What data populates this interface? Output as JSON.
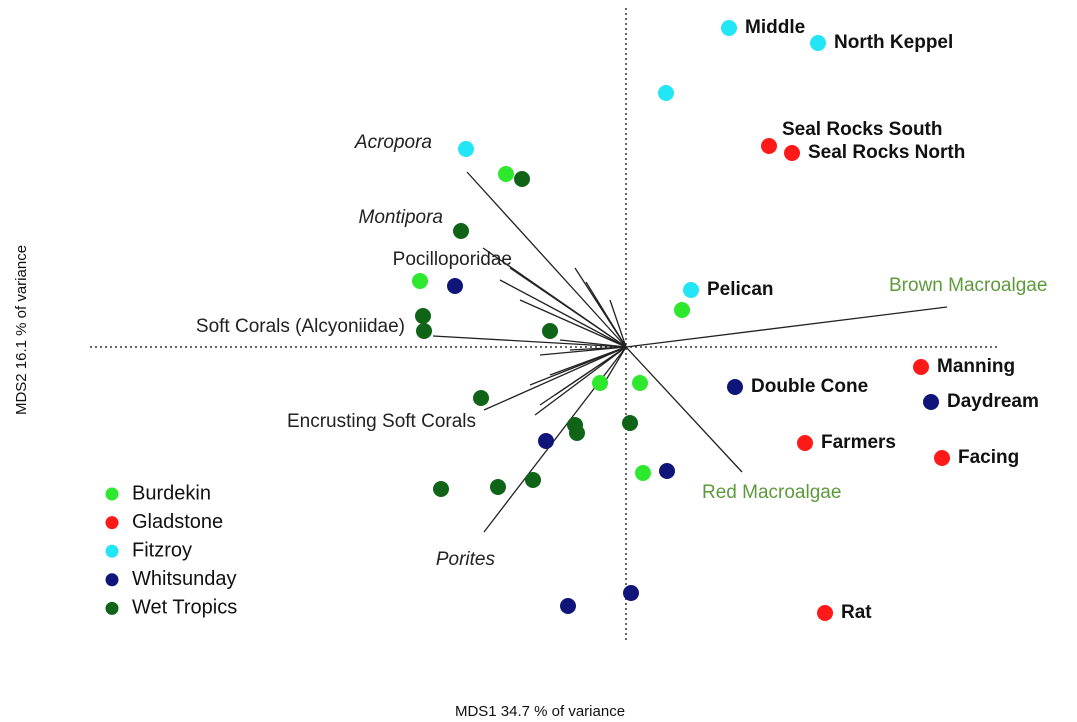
{
  "chart_data": {
    "type": "scatter",
    "xlabel": "MDS1   34.7 % of variance",
    "ylabel": "MDS2   16.1 % of variance",
    "xlim": [
      -5.4,
      4.5
    ],
    "ylim": [
      -2.95,
      3.45
    ],
    "legend": "lower left",
    "series": [
      {
        "name": "Burdekin",
        "color": "#2ee82e",
        "x": [
          -1.2,
          -2.06,
          0.56,
          -0.26,
          0.14,
          0.17
        ],
        "y": [
          1.73,
          0.66,
          0.37,
          -0.36,
          -0.36,
          -1.26
        ],
        "labels": [
          null,
          null,
          null,
          null,
          null,
          null
        ]
      },
      {
        "name": "Gladstone",
        "color": "#ff1a1a",
        "x": [
          1.43,
          1.66,
          2.95,
          3.16,
          1.79,
          1.99
        ],
        "y": [
          2.01,
          1.94,
          -0.2,
          -1.11,
          -0.96,
          -2.66
        ],
        "labels": [
          "Seal Rocks South",
          "Seal Rocks North",
          "Manning",
          "Facing",
          "Farmers",
          "Rat"
        ]
      },
      {
        "name": "Fitzroy",
        "color": "#22e5f5",
        "x": [
          1.03,
          1.92,
          0.4,
          -1.6,
          0.65
        ],
        "y": [
          3.19,
          3.04,
          2.54,
          1.98,
          0.57
        ],
        "labels": [
          "Middle",
          "North Keppel",
          null,
          null,
          "Pelican"
        ]
      },
      {
        "name": "Whitsunday",
        "color": "#10157a",
        "x": [
          -1.71,
          1.09,
          3.05,
          -0.8,
          0.41,
          0.05,
          -0.58
        ],
        "y": [
          0.61,
          -0.4,
          -0.55,
          -0.94,
          -1.24,
          -2.46,
          -2.59
        ],
        "labels": [
          null,
          "Double Cone",
          "Daydream",
          null,
          null,
          null,
          null
        ]
      },
      {
        "name": "Wet Tropics",
        "color": "#0f6418",
        "x": [
          -1.04,
          -1.65,
          -2.03,
          -2.02,
          -0.76,
          -1.45,
          -0.51,
          -0.49,
          0.04,
          -1.85,
          -1.28,
          -0.93
        ],
        "y": [
          1.68,
          1.16,
          0.31,
          0.16,
          0.16,
          -0.51,
          -0.78,
          -0.86,
          -0.76,
          -1.42,
          -1.4,
          -1.33
        ],
        "labels": [
          null,
          null,
          null,
          null,
          null,
          null,
          null,
          null,
          null,
          null,
          null,
          null
        ]
      }
    ],
    "vectors": [
      {
        "label": "Acropora",
        "x": -1.59,
        "y": 1.75,
        "italic": true,
        "label_color": "#222222"
      },
      {
        "label": "Montipora",
        "x": -1.43,
        "y": 0.99,
        "italic": true,
        "label_color": "#222222"
      },
      {
        "label": "Pocilloporidae",
        "x": -1.16,
        "y": 0.79,
        "italic": false,
        "label_color": "#222222"
      },
      {
        "label": "Soft Corals (Alcyoniidae)",
        "x": -1.93,
        "y": 0.11,
        "italic": false,
        "label_color": "#222222"
      },
      {
        "label": "Encrusting Soft Corals",
        "x": -1.42,
        "y": -0.63,
        "italic": false,
        "label_color": "#222222"
      },
      {
        "label": "Porites",
        "x": -1.42,
        "y": -1.85,
        "italic": true,
        "label_color": "#222222"
      },
      {
        "label": "Brown Macroalgae",
        "x": 3.21,
        "y": 0.4,
        "italic": false,
        "label_color": "#5e9a3c"
      },
      {
        "label": "Red Macroalgae",
        "x": 1.16,
        "y": -1.25,
        "italic": false,
        "label_color": "#5e9a3c"
      }
    ],
    "unlabeled_vectors": {
      "x": [
        -0.51,
        -0.4,
        -0.66,
        -0.56,
        -0.86,
        -0.96,
        -0.86,
        -0.91,
        -0.71,
        -0.76,
        -0.26,
        -0.16,
        -1.26,
        -1.06
      ],
      "y": [
        0.79,
        0.65,
        0.07,
        -0.03,
        -0.08,
        -0.38,
        -0.58,
        -0.68,
        -0.48,
        -0.28,
        -0.43,
        0.47,
        0.67,
        0.47
      ]
    }
  }
}
